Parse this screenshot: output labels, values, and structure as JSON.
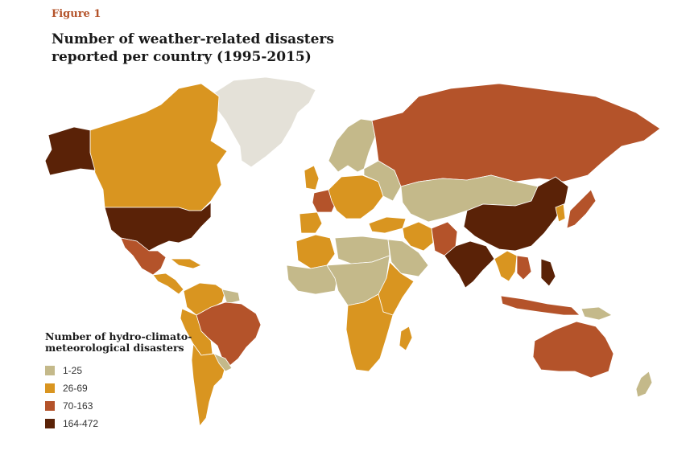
{
  "figure_label": "Figure 1",
  "title_line1": "Number of weather-related disasters",
  "title_line2": "reported per country (1995-2015)",
  "legend": {
    "title": "Number of hydro-climato-meteorological disasters",
    "items": [
      {
        "label": "1-25",
        "color": "#c4b98a"
      },
      {
        "label": "26-69",
        "color": "#d99520"
      },
      {
        "label": "70-163",
        "color": "#b4532a"
      },
      {
        "label": "164-472",
        "color": "#5a2207"
      }
    ]
  },
  "colors": {
    "no_data": "#e4e1d8",
    "border": "#ffffff"
  },
  "regions": [
    {
      "id": "greenland",
      "class": "no_data"
    },
    {
      "id": "canada",
      "class": "26-69"
    },
    {
      "id": "alaska",
      "class": "164-472"
    },
    {
      "id": "usa",
      "class": "164-472"
    },
    {
      "id": "mexico",
      "class": "70-163"
    },
    {
      "id": "central-america",
      "class": "26-69"
    },
    {
      "id": "caribbean",
      "class": "26-69"
    },
    {
      "id": "colombia-venezuela",
      "class": "26-69"
    },
    {
      "id": "guianas",
      "class": "1-25"
    },
    {
      "id": "brazil",
      "class": "70-163"
    },
    {
      "id": "peru-bolivia",
      "class": "26-69"
    },
    {
      "id": "chile-argentina",
      "class": "26-69"
    },
    {
      "id": "uruguay-paraguay",
      "class": "1-25"
    },
    {
      "id": "scandinavia",
      "class": "1-25"
    },
    {
      "id": "uk-ireland",
      "class": "26-69"
    },
    {
      "id": "france",
      "class": "70-163"
    },
    {
      "id": "iberia",
      "class": "26-69"
    },
    {
      "id": "central-europe",
      "class": "26-69"
    },
    {
      "id": "eastern-europe",
      "class": "1-25"
    },
    {
      "id": "russia",
      "class": "70-163"
    },
    {
      "id": "kazakhstan-mongolia",
      "class": "1-25"
    },
    {
      "id": "turkey",
      "class": "26-69"
    },
    {
      "id": "iran",
      "class": "26-69"
    },
    {
      "id": "afghanistan-pakistan",
      "class": "70-163"
    },
    {
      "id": "india",
      "class": "164-472"
    },
    {
      "id": "china",
      "class": "164-472"
    },
    {
      "id": "japan",
      "class": "70-163"
    },
    {
      "id": "korea",
      "class": "26-69"
    },
    {
      "id": "southeast-asia",
      "class": "26-69"
    },
    {
      "id": "vietnam",
      "class": "70-163"
    },
    {
      "id": "philippines",
      "class": "164-472"
    },
    {
      "id": "indonesia",
      "class": "70-163"
    },
    {
      "id": "papua",
      "class": "1-25"
    },
    {
      "id": "australia",
      "class": "70-163"
    },
    {
      "id": "new-zealand",
      "class": "1-25"
    },
    {
      "id": "north-africa",
      "class": "26-69"
    },
    {
      "id": "libya-egypt",
      "class": "1-25"
    },
    {
      "id": "arabia",
      "class": "1-25"
    },
    {
      "id": "west-africa",
      "class": "1-25"
    },
    {
      "id": "central-africa",
      "class": "1-25"
    },
    {
      "id": "east-africa",
      "class": "26-69"
    },
    {
      "id": "southern-africa",
      "class": "26-69"
    },
    {
      "id": "madagascar",
      "class": "26-69"
    }
  ]
}
